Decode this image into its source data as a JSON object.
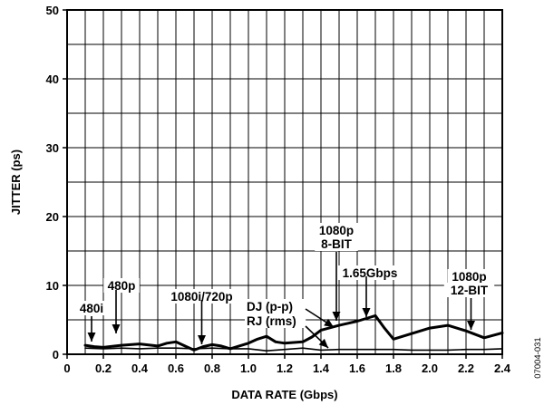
{
  "chart_data": {
    "type": "line",
    "xlabel": "DATA RATE (Gbps)",
    "ylabel": "JITTER (ps)",
    "xlim": [
      0,
      2.4
    ],
    "ylim": [
      0,
      50
    ],
    "x_ticks": [
      "0",
      "0.2",
      "0.4",
      "0.6",
      "0.8",
      "1.0",
      "1.2",
      "1.4",
      "1.6",
      "1.8",
      "2.0",
      "2.2",
      "2.4"
    ],
    "y_ticks": [
      "0",
      "10",
      "20",
      "30",
      "40",
      "50"
    ],
    "grid": true,
    "series": [
      {
        "name": "DJ (p-p)",
        "color": "#000000",
        "x": [
          0.1,
          0.15,
          0.2,
          0.3,
          0.4,
          0.5,
          0.55,
          0.6,
          0.65,
          0.7,
          0.75,
          0.8,
          0.85,
          0.9,
          1.0,
          1.05,
          1.1,
          1.15,
          1.2,
          1.3,
          1.35,
          1.4,
          1.5,
          1.6,
          1.65,
          1.7,
          1.75,
          1.8,
          1.9,
          2.0,
          2.1,
          2.2,
          2.3,
          2.4
        ],
        "y": [
          1.3,
          1.1,
          1.0,
          1.3,
          1.5,
          1.2,
          1.6,
          1.8,
          1.2,
          0.6,
          1.1,
          1.4,
          1.2,
          0.8,
          1.6,
          2.2,
          2.6,
          1.8,
          1.6,
          1.8,
          2.5,
          3.5,
          4.2,
          4.8,
          5.2,
          5.6,
          3.8,
          2.2,
          3.0,
          3.8,
          4.2,
          3.4,
          2.4,
          3.1
        ]
      },
      {
        "name": "RJ (rms)",
        "color": "#000000",
        "x": [
          0.1,
          0.2,
          0.3,
          0.4,
          0.5,
          0.6,
          0.7,
          0.8,
          0.9,
          1.0,
          1.1,
          1.2,
          1.3,
          1.4,
          1.5,
          1.6,
          1.7,
          1.8,
          1.9,
          2.0,
          2.1,
          2.2,
          2.3,
          2.4
        ],
        "y": [
          0.9,
          0.8,
          0.9,
          0.8,
          0.9,
          0.9,
          0.8,
          0.9,
          0.8,
          0.8,
          0.5,
          0.7,
          0.9,
          0.6,
          0.7,
          0.7,
          0.7,
          0.7,
          0.6,
          0.6,
          0.6,
          0.7,
          0.7,
          0.8
        ]
      }
    ],
    "annotations": [
      {
        "lines": [
          "480i"
        ],
        "x": 0.135
      },
      {
        "lines": [
          "480p"
        ],
        "x": 0.27
      },
      {
        "lines": [
          "1080i/720p"
        ],
        "x": 0.7425
      },
      {
        "lines": [
          "1080p",
          "8-BIT"
        ],
        "x": 1.485
      },
      {
        "lines": [
          "1.65Gbps"
        ],
        "x": 1.65
      },
      {
        "lines": [
          "1080p",
          "12-BIT"
        ],
        "x": 2.2275
      },
      {
        "lines": [
          "DJ (p-p)"
        ],
        "series": "DJ (p-p)"
      },
      {
        "lines": [
          "RJ (rms)"
        ],
        "series": "RJ (rms)"
      }
    ],
    "side_id": "07004-031"
  }
}
